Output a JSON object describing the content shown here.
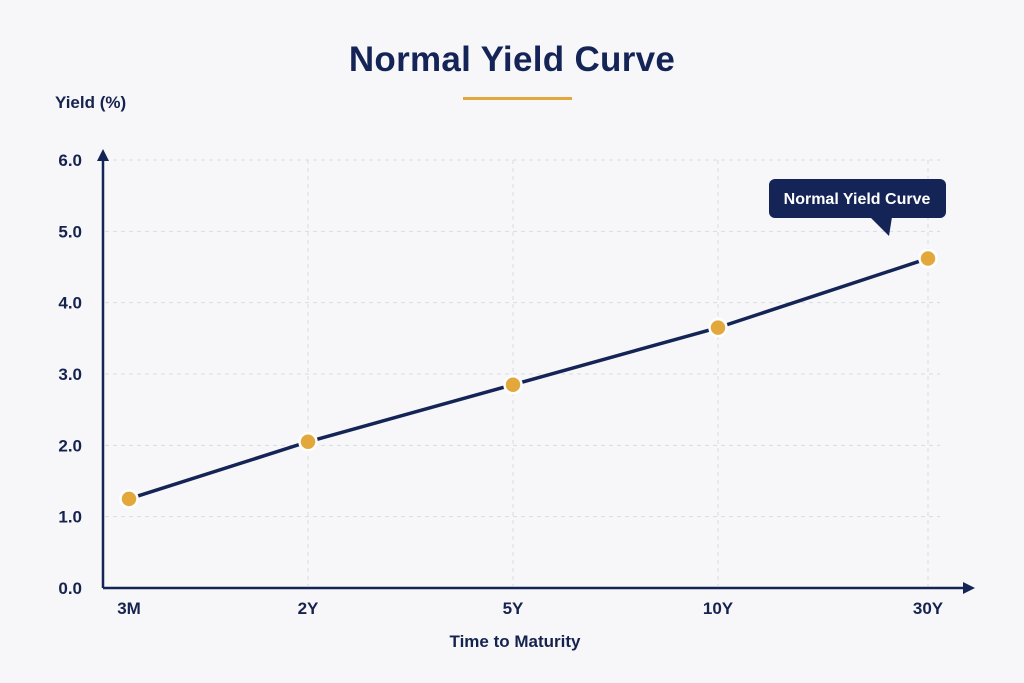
{
  "chart_data": {
    "type": "line",
    "title": "Normal Yield Curve",
    "xlabel": "Time to Maturity",
    "ylabel": "Yield (%)",
    "categories": [
      "3M",
      "2Y",
      "5Y",
      "10Y",
      "30Y"
    ],
    "series": [
      {
        "values": [
          1.25,
          2.05,
          2.85,
          3.65,
          4.62
        ]
      }
    ],
    "yticks": [
      "0.0",
      "1.0",
      "2.0",
      "3.0",
      "4.0",
      "5.0",
      "6.0"
    ],
    "ylim": [
      0,
      6
    ],
    "grid": true,
    "annotation": "Normal Yield Curve",
    "colors": {
      "line": "#142456",
      "marker": "#e3a83c",
      "grid": "#d9dbe2",
      "axis": "#142456",
      "callout_bg": "#142456",
      "accent": "#e3a83c"
    }
  }
}
